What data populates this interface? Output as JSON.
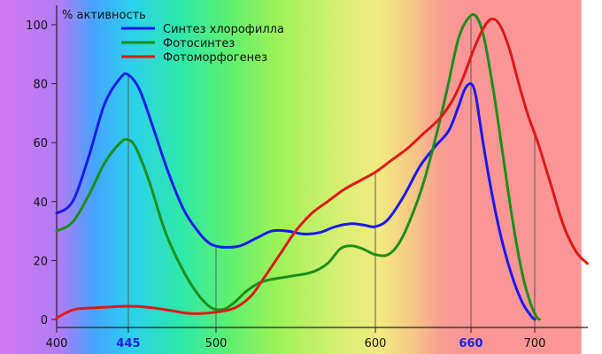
{
  "chart_data": {
    "type": "line",
    "ylabel": "% активность",
    "xlim": [
      400,
      735
    ],
    "ylim": [
      0,
      105
    ],
    "x_ticks": [
      {
        "value": 400,
        "label": "400",
        "highlight": false
      },
      {
        "value": 445,
        "label": "445",
        "highlight": true
      },
      {
        "value": 500,
        "label": "500",
        "highlight": false
      },
      {
        "value": 600,
        "label": "600",
        "highlight": false
      },
      {
        "value": 660,
        "label": "660",
        "highlight": true
      },
      {
        "value": 700,
        "label": "700",
        "highlight": false
      }
    ],
    "y_ticks": [
      {
        "value": 0,
        "label": "0"
      },
      {
        "value": 20,
        "label": "20"
      },
      {
        "value": 40,
        "label": "40"
      },
      {
        "value": 60,
        "label": "60"
      },
      {
        "value": 80,
        "label": "80"
      },
      {
        "value": 100,
        "label": "100"
      }
    ],
    "reference_lines": [
      445,
      500,
      600,
      660,
      700
    ],
    "legend_position": "top-center",
    "background": "visible spectrum gradient (violet to red)",
    "series": [
      {
        "name": "Синтез хлорофилла",
        "color": "#1a1aee",
        "points": [
          [
            400,
            36
          ],
          [
            410,
            40
          ],
          [
            420,
            55
          ],
          [
            430,
            73
          ],
          [
            440,
            82
          ],
          [
            445,
            83
          ],
          [
            452,
            78
          ],
          [
            460,
            66
          ],
          [
            470,
            50
          ],
          [
            480,
            37
          ],
          [
            490,
            29
          ],
          [
            497,
            25.5
          ],
          [
            505,
            24.5
          ],
          [
            515,
            25
          ],
          [
            525,
            27.5
          ],
          [
            535,
            30
          ],
          [
            545,
            30
          ],
          [
            555,
            29
          ],
          [
            565,
            29.5
          ],
          [
            575,
            31.5
          ],
          [
            585,
            32.5
          ],
          [
            593,
            32
          ],
          [
            600,
            31.5
          ],
          [
            608,
            34
          ],
          [
            618,
            42
          ],
          [
            628,
            52
          ],
          [
            638,
            59
          ],
          [
            646,
            64
          ],
          [
            652,
            72
          ],
          [
            656,
            78
          ],
          [
            660,
            80
          ],
          [
            663,
            76
          ],
          [
            667,
            62
          ],
          [
            672,
            46
          ],
          [
            678,
            30
          ],
          [
            685,
            16
          ],
          [
            692,
            6
          ],
          [
            698,
            1
          ],
          [
            700,
            0
          ]
        ]
      },
      {
        "name": "Фотосинтез",
        "color": "#1b8f1b",
        "points": [
          [
            400,
            30
          ],
          [
            410,
            33
          ],
          [
            420,
            42
          ],
          [
            430,
            53
          ],
          [
            440,
            60
          ],
          [
            445,
            61
          ],
          [
            450,
            58
          ],
          [
            458,
            47
          ],
          [
            468,
            30
          ],
          [
            478,
            18
          ],
          [
            488,
            9
          ],
          [
            497,
            4
          ],
          [
            505,
            3.5
          ],
          [
            512,
            6
          ],
          [
            520,
            10
          ],
          [
            530,
            13
          ],
          [
            545,
            14.5
          ],
          [
            560,
            16
          ],
          [
            570,
            19
          ],
          [
            578,
            24
          ],
          [
            585,
            25
          ],
          [
            592,
            24
          ],
          [
            600,
            22
          ],
          [
            608,
            22
          ],
          [
            615,
            26
          ],
          [
            622,
            34
          ],
          [
            630,
            46
          ],
          [
            638,
            62
          ],
          [
            645,
            78
          ],
          [
            652,
            95
          ],
          [
            658,
            102
          ],
          [
            663,
            103
          ],
          [
            668,
            96
          ],
          [
            674,
            78
          ],
          [
            680,
            56
          ],
          [
            686,
            34
          ],
          [
            692,
            16
          ],
          [
            697,
            6
          ],
          [
            701,
            1
          ],
          [
            703,
            0
          ]
        ]
      },
      {
        "name": "Фотоморфогенез",
        "color": "#e01818",
        "points": [
          [
            400,
            0.5
          ],
          [
            405,
            2
          ],
          [
            412,
            3.5
          ],
          [
            425,
            4
          ],
          [
            445,
            4.5
          ],
          [
            460,
            4
          ],
          [
            472,
            3
          ],
          [
            485,
            2
          ],
          [
            500,
            2.5
          ],
          [
            512,
            4
          ],
          [
            522,
            8
          ],
          [
            530,
            14
          ],
          [
            540,
            22
          ],
          [
            550,
            30
          ],
          [
            560,
            36
          ],
          [
            570,
            40
          ],
          [
            580,
            44
          ],
          [
            590,
            47
          ],
          [
            600,
            50
          ],
          [
            610,
            54
          ],
          [
            620,
            58
          ],
          [
            630,
            63
          ],
          [
            640,
            68
          ],
          [
            648,
            74
          ],
          [
            655,
            82
          ],
          [
            662,
            92
          ],
          [
            668,
            99
          ],
          [
            673,
            102
          ],
          [
            678,
            100
          ],
          [
            684,
            92
          ],
          [
            690,
            80
          ],
          [
            696,
            69
          ],
          [
            702,
            60
          ],
          [
            710,
            46
          ],
          [
            718,
            32
          ],
          [
            726,
            23
          ],
          [
            733,
            19
          ]
        ]
      }
    ]
  }
}
